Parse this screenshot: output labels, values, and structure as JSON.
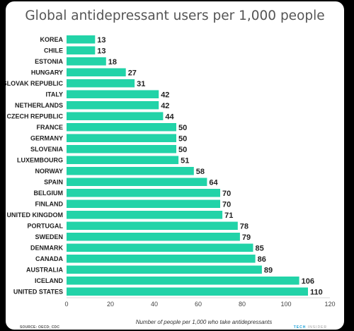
{
  "chart_data": {
    "type": "bar",
    "orientation": "horizontal",
    "title": "Global antidepressant users per 1,000 people",
    "xlabel": "Number of people per 1,000 who take antidepressants",
    "ylabel": "",
    "categories": [
      "KOREA",
      "CHILE",
      "ESTONIA",
      "HUNGARY",
      "SLOVAK REPUBLIC",
      "ITALY",
      "NETHERLANDS",
      "CZECH REPUBLIC",
      "FRANCE",
      "GERMANY",
      "SLOVENIA",
      "LUXEMBOURG",
      "NORWAY",
      "SPAIN",
      "BELGIUM",
      "FINLAND",
      "UNITED KINGDOM",
      "PORTUGAL",
      "SWEDEN",
      "DENMARK",
      "CANADA",
      "AUSTRALIA",
      "ICELAND",
      "UNITED STATES"
    ],
    "values": [
      13,
      13,
      18,
      27,
      31,
      42,
      42,
      44,
      50,
      50,
      50,
      51,
      58,
      64,
      70,
      70,
      71,
      78,
      79,
      85,
      86,
      89,
      106,
      110
    ],
    "xlim": [
      0,
      120
    ],
    "xticks": [
      0,
      20,
      40,
      60,
      80,
      100,
      120
    ],
    "grid": false,
    "bar_color": "#22d3a8"
  },
  "footer": {
    "source": "SOURCE: OECD; CDC",
    "brand_tech": "TECH",
    "brand_insider": "INSIDER"
  }
}
